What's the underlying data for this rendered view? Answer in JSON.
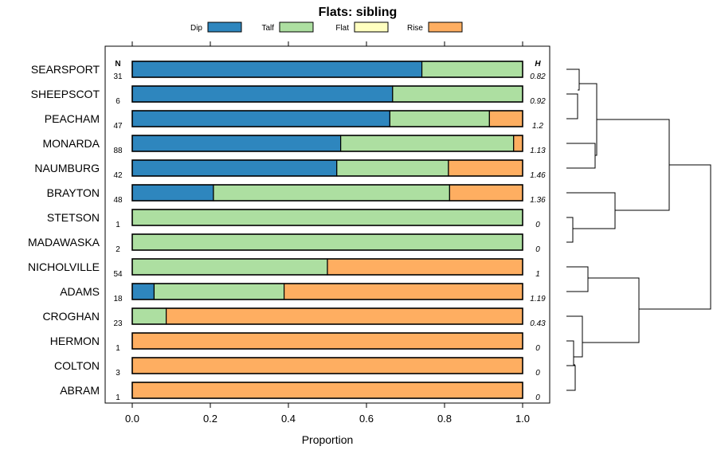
{
  "chart_data": {
    "type": "bar",
    "orientation": "horizontal",
    "stacked": true,
    "title": "Flats: sibling",
    "xlabel": "Proportion",
    "ylabel": "",
    "xlim": [
      0,
      1
    ],
    "x_ticks": [
      "0.0",
      "0.2",
      "0.4",
      "0.6",
      "0.8",
      "1.0"
    ],
    "legend": [
      "Dip",
      "Talf",
      "Flat",
      "Rise"
    ],
    "legend_position": "top",
    "colors": {
      "Dip": "#2e86be",
      "Talf": "#addfa1",
      "Flat": "#ffffc0",
      "Rise": "#feae61"
    },
    "n_header": "N",
    "h_header": "H",
    "categories": [
      "SEARSPORT",
      "SHEEPSCOT",
      "PEACHAM",
      "MONARDA",
      "NAUMBURG",
      "BRAYTON",
      "STETSON",
      "MADAWASKA",
      "NICHOLVILLE",
      "ADAMS",
      "CROGHAN",
      "HERMON",
      "COLTON",
      "ABRAM"
    ],
    "n": [
      "31",
      "6",
      "47",
      "88",
      "42",
      "48",
      "1",
      "2",
      "54",
      "18",
      "23",
      "1",
      "3",
      "1"
    ],
    "h": [
      "0.82",
      "0.92",
      "1.2",
      "1.13",
      "1.46",
      "1.36",
      "0",
      "0",
      "1",
      "1.19",
      "0.43",
      "0",
      "0",
      "0"
    ],
    "series": [
      {
        "name": "Dip",
        "values": [
          0.742,
          0.667,
          0.66,
          0.534,
          0.524,
          0.208,
          0,
          0,
          0,
          0.056,
          0,
          0,
          0,
          0
        ]
      },
      {
        "name": "Talf",
        "values": [
          0.258,
          0.333,
          0.255,
          0.443,
          0.286,
          0.605,
          1,
          1,
          0.5,
          0.333,
          0.087,
          0,
          0,
          0
        ]
      },
      {
        "name": "Flat",
        "values": [
          0,
          0,
          0,
          0,
          0,
          0,
          0,
          0,
          0,
          0,
          0,
          0,
          0,
          0
        ]
      },
      {
        "name": "Rise",
        "values": [
          0,
          0,
          0.085,
          0.023,
          0.19,
          0.187,
          0,
          0,
          0.5,
          0.611,
          0.913,
          1,
          1,
          1
        ]
      }
    ],
    "dendrogram": "hierarchical clustering tree of the rows, drawn at the right"
  }
}
